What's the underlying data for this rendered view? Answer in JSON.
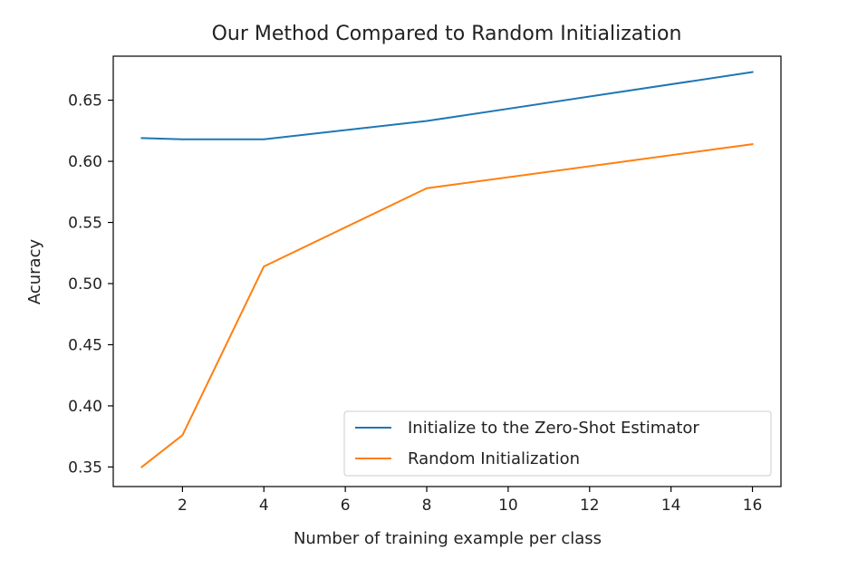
{
  "chart_data": {
    "type": "line",
    "title": "Our Method Compared to Random Initialization",
    "xlabel": "Number of training example per class",
    "ylabel": "Acuracy",
    "x": [
      1,
      2,
      4,
      8,
      16
    ],
    "xlim": [
      0.3,
      16.7
    ],
    "ylim": [
      0.334,
      0.686
    ],
    "xticks": [
      2,
      4,
      6,
      8,
      10,
      12,
      14,
      16
    ],
    "yticks": [
      0.35,
      0.4,
      0.45,
      0.5,
      0.55,
      0.6,
      0.65
    ],
    "ytick_labels": [
      "0.35",
      "0.40",
      "0.45",
      "0.50",
      "0.55",
      "0.60",
      "0.65"
    ],
    "grid": false,
    "legend_position": "lower-right",
    "series": [
      {
        "name": "Initialize to the Zero-Shot Estimator",
        "color": "#1f77b4",
        "values": [
          0.619,
          0.618,
          0.618,
          0.633,
          0.673
        ]
      },
      {
        "name": "Random Initialization",
        "color": "#ff7f0e",
        "values": [
          0.35,
          0.376,
          0.514,
          0.578,
          0.614
        ]
      }
    ]
  }
}
